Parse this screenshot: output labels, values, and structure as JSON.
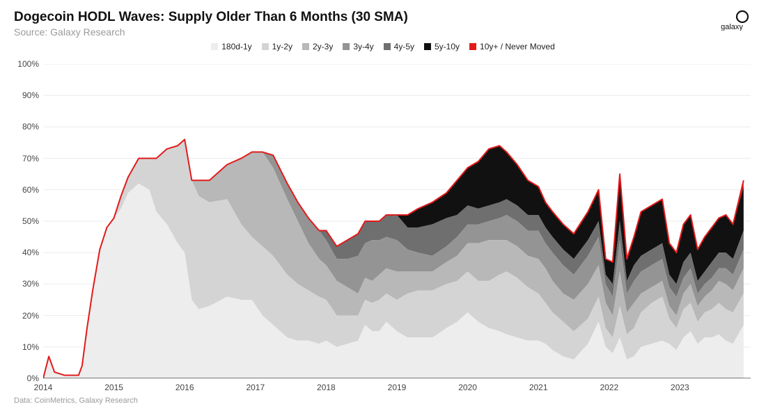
{
  "header": {
    "title": "Dogecoin HODL Waves: Supply Older Than 6 Months (30 SMA)",
    "subtitle": "Source: Galaxy Research",
    "brand": "galaxy"
  },
  "footer": {
    "text": "Data: CoinMetrics, Galaxy Research"
  },
  "chart": {
    "type": "stacked-area",
    "background_color": "#ffffff",
    "grid_color": "#e8e8e8",
    "x": {
      "start": 2014,
      "end": 2024,
      "ticks": [
        2014,
        2015,
        2016,
        2017,
        2018,
        2019,
        2020,
        2021,
        2022,
        2023
      ],
      "tick_labels": [
        "2014",
        "2015",
        "2016",
        "2017",
        "2018",
        "2019",
        "2020",
        "2021",
        "2022",
        "2023"
      ],
      "label_fontsize": 12,
      "label_color": "#444444"
    },
    "y": {
      "min": 0,
      "max": 100,
      "ticks": [
        0,
        10,
        20,
        30,
        40,
        50,
        60,
        70,
        80,
        90,
        100
      ],
      "tick_labels": [
        "0%",
        "10%",
        "20%",
        "30%",
        "40%",
        "50%",
        "60%",
        "70%",
        "80%",
        "90%",
        "100%"
      ],
      "label_fontsize": 12,
      "label_color": "#444444"
    },
    "top_line": {
      "color": "#e11b1b",
      "width": 2
    },
    "series": [
      {
        "key": "180d-1y",
        "label": "180d-1y",
        "color": "#ededed"
      },
      {
        "key": "1y-2y",
        "label": "1y-2y",
        "color": "#d4d4d4"
      },
      {
        "key": "2y-3y",
        "label": "2y-3y",
        "color": "#b8b8b8"
      },
      {
        "key": "3y-4y",
        "label": "3y-4y",
        "color": "#949494"
      },
      {
        "key": "4y-5y",
        "label": "4y-5y",
        "color": "#6f6f6f"
      },
      {
        "key": "5y-10y",
        "label": "5y-10y",
        "color": "#111111"
      },
      {
        "key": "10y+",
        "label": "10y+ / Never Moved",
        "color": "#e11b1b"
      }
    ],
    "samples": [
      {
        "t": 2014.0,
        "v": [
          0,
          0,
          0,
          0,
          0,
          0,
          0
        ]
      },
      {
        "t": 2014.08,
        "v": [
          7,
          0,
          0,
          0,
          0,
          0,
          0
        ]
      },
      {
        "t": 2014.16,
        "v": [
          2,
          0,
          0,
          0,
          0,
          0,
          0
        ]
      },
      {
        "t": 2014.3,
        "v": [
          1,
          0,
          0,
          0,
          0,
          0,
          0
        ]
      },
      {
        "t": 2014.5,
        "v": [
          1,
          0,
          0,
          0,
          0,
          0,
          0
        ]
      },
      {
        "t": 2014.55,
        "v": [
          4,
          0,
          0,
          0,
          0,
          0,
          0
        ]
      },
      {
        "t": 2014.62,
        "v": [
          16,
          0,
          0,
          0,
          0,
          0,
          0
        ]
      },
      {
        "t": 2014.7,
        "v": [
          28,
          0,
          0,
          0,
          0,
          0,
          0
        ]
      },
      {
        "t": 2014.8,
        "v": [
          41,
          0,
          0,
          0,
          0,
          0,
          0
        ]
      },
      {
        "t": 2014.9,
        "v": [
          48,
          0,
          0,
          0,
          0,
          0,
          0
        ]
      },
      {
        "t": 2015.0,
        "v": [
          51,
          0,
          0,
          0,
          0,
          0,
          0
        ]
      },
      {
        "t": 2015.1,
        "v": [
          54,
          4,
          0,
          0,
          0,
          0,
          0
        ]
      },
      {
        "t": 2015.2,
        "v": [
          59,
          5,
          0,
          0,
          0,
          0,
          0
        ]
      },
      {
        "t": 2015.35,
        "v": [
          62,
          8,
          0,
          0,
          0,
          0,
          0
        ]
      },
      {
        "t": 2015.5,
        "v": [
          60,
          10,
          0,
          0,
          0,
          0,
          0
        ]
      },
      {
        "t": 2015.6,
        "v": [
          53,
          17,
          0,
          0,
          0,
          0,
          0
        ]
      },
      {
        "t": 2015.75,
        "v": [
          49,
          24,
          0,
          0,
          0,
          0,
          0
        ]
      },
      {
        "t": 2015.9,
        "v": [
          43,
          31,
          0,
          0,
          0,
          0,
          0
        ]
      },
      {
        "t": 2016.0,
        "v": [
          40,
          36,
          0,
          0,
          0,
          0,
          0
        ]
      },
      {
        "t": 2016.1,
        "v": [
          25,
          38,
          0,
          0,
          0,
          0,
          0
        ]
      },
      {
        "t": 2016.2,
        "v": [
          22,
          36,
          5,
          0,
          0,
          0,
          0
        ]
      },
      {
        "t": 2016.35,
        "v": [
          23,
          33,
          7,
          0,
          0,
          0,
          0
        ]
      },
      {
        "t": 2016.6,
        "v": [
          26,
          31,
          11,
          0,
          0,
          0,
          0
        ]
      },
      {
        "t": 2016.8,
        "v": [
          25,
          24,
          21,
          0,
          0,
          0,
          0
        ]
      },
      {
        "t": 2016.95,
        "v": [
          25,
          20,
          27,
          0,
          0,
          0,
          0
        ]
      },
      {
        "t": 2017.1,
        "v": [
          20,
          22,
          30,
          0,
          0,
          0,
          0
        ]
      },
      {
        "t": 2017.25,
        "v": [
          17,
          22,
          28,
          4,
          0,
          0,
          0
        ]
      },
      {
        "t": 2017.45,
        "v": [
          13,
          20,
          24,
          5,
          0,
          0,
          0
        ]
      },
      {
        "t": 2017.6,
        "v": [
          12,
          18,
          20,
          6,
          0,
          0,
          0
        ]
      },
      {
        "t": 2017.75,
        "v": [
          12,
          16,
          15,
          8,
          0,
          0,
          0
        ]
      },
      {
        "t": 2017.9,
        "v": [
          11,
          15,
          12,
          9,
          0,
          0,
          0
        ]
      },
      {
        "t": 2018.0,
        "v": [
          12,
          13,
          11,
          8,
          3,
          0,
          0
        ]
      },
      {
        "t": 2018.15,
        "v": [
          10,
          10,
          11,
          7,
          4,
          0,
          0
        ]
      },
      {
        "t": 2018.3,
        "v": [
          11,
          9,
          9,
          9,
          6,
          0,
          0
        ]
      },
      {
        "t": 2018.45,
        "v": [
          12,
          8,
          7,
          12,
          7,
          0,
          0
        ]
      },
      {
        "t": 2018.55,
        "v": [
          17,
          8,
          7,
          11,
          7,
          0,
          0
        ]
      },
      {
        "t": 2018.65,
        "v": [
          15,
          9,
          7,
          13,
          6,
          0,
          0
        ]
      },
      {
        "t": 2018.75,
        "v": [
          15,
          10,
          8,
          11,
          6,
          0,
          0
        ]
      },
      {
        "t": 2018.85,
        "v": [
          18,
          9,
          8,
          10,
          7,
          0,
          0
        ]
      },
      {
        "t": 2019.0,
        "v": [
          15,
          10,
          9,
          10,
          8,
          0,
          0
        ]
      },
      {
        "t": 2019.15,
        "v": [
          13,
          14,
          7,
          7,
          7,
          4,
          0
        ]
      },
      {
        "t": 2019.3,
        "v": [
          13,
          15,
          6,
          6,
          8,
          6,
          0
        ]
      },
      {
        "t": 2019.5,
        "v": [
          13,
          15,
          6,
          5,
          10,
          7,
          0
        ]
      },
      {
        "t": 2019.7,
        "v": [
          16,
          14,
          7,
          5,
          9,
          8,
          0
        ]
      },
      {
        "t": 2019.85,
        "v": [
          18,
          13,
          8,
          6,
          7,
          11,
          0
        ]
      },
      {
        "t": 2020.0,
        "v": [
          21,
          13,
          9,
          6,
          6,
          12,
          0
        ]
      },
      {
        "t": 2020.15,
        "v": [
          18,
          13,
          12,
          6,
          5,
          15,
          0
        ]
      },
      {
        "t": 2020.3,
        "v": [
          16,
          15,
          13,
          6,
          5,
          18,
          0
        ]
      },
      {
        "t": 2020.45,
        "v": [
          15,
          18,
          11,
          7,
          5,
          18,
          0
        ]
      },
      {
        "t": 2020.55,
        "v": [
          14,
          20,
          10,
          8,
          5,
          15,
          0
        ]
      },
      {
        "t": 2020.7,
        "v": [
          13,
          19,
          10,
          8,
          5,
          13,
          0
        ]
      },
      {
        "t": 2020.85,
        "v": [
          12,
          17,
          10,
          8,
          5,
          11,
          0
        ]
      },
      {
        "t": 2021.0,
        "v": [
          12,
          15,
          11,
          9,
          5,
          9,
          0
        ]
      },
      {
        "t": 2021.1,
        "v": [
          11,
          13,
          11,
          8,
          5,
          8,
          0
        ]
      },
      {
        "t": 2021.2,
        "v": [
          9,
          12,
          10,
          9,
          5,
          8,
          0
        ]
      },
      {
        "t": 2021.35,
        "v": [
          7,
          11,
          9,
          9,
          5,
          8,
          0
        ]
      },
      {
        "t": 2021.5,
        "v": [
          6,
          9,
          10,
          8,
          5,
          8,
          0
        ]
      },
      {
        "t": 2021.7,
        "v": [
          11,
          8,
          11,
          9,
          5,
          9,
          0
        ]
      },
      {
        "t": 2021.85,
        "v": [
          18,
          8,
          10,
          9,
          5,
          10,
          0
        ]
      },
      {
        "t": 2021.95,
        "v": [
          10,
          6,
          8,
          6,
          3,
          5,
          0
        ]
      },
      {
        "t": 2022.05,
        "v": [
          8,
          5,
          7,
          6,
          4,
          7,
          0
        ]
      },
      {
        "t": 2022.15,
        "v": [
          13,
          10,
          11,
          10,
          6,
          15,
          0
        ]
      },
      {
        "t": 2022.25,
        "v": [
          6,
          8,
          7,
          6,
          4,
          7,
          0
        ]
      },
      {
        "t": 2022.35,
        "v": [
          7,
          9,
          8,
          7,
          5,
          9,
          0
        ]
      },
      {
        "t": 2022.45,
        "v": [
          10,
          11,
          6,
          7,
          5,
          14,
          0
        ]
      },
      {
        "t": 2022.6,
        "v": [
          11,
          13,
          5,
          7,
          5,
          14,
          0
        ]
      },
      {
        "t": 2022.75,
        "v": [
          12,
          14,
          5,
          7,
          5,
          14,
          0
        ]
      },
      {
        "t": 2022.85,
        "v": [
          11,
          8,
          4,
          6,
          4,
          10,
          0
        ]
      },
      {
        "t": 2022.95,
        "v": [
          9,
          7,
          4,
          6,
          4,
          10,
          0
        ]
      },
      {
        "t": 2023.05,
        "v": [
          13,
          9,
          5,
          5,
          5,
          12,
          0
        ]
      },
      {
        "t": 2023.15,
        "v": [
          15,
          9,
          6,
          5,
          5,
          12,
          0
        ]
      },
      {
        "t": 2023.25,
        "v": [
          11,
          7,
          5,
          4,
          4,
          10,
          0
        ]
      },
      {
        "t": 2023.35,
        "v": [
          13,
          8,
          5,
          4,
          4,
          11,
          0
        ]
      },
      {
        "t": 2023.45,
        "v": [
          13,
          9,
          6,
          4,
          5,
          11,
          0
        ]
      },
      {
        "t": 2023.55,
        "v": [
          14,
          10,
          7,
          4,
          5,
          11,
          0
        ]
      },
      {
        "t": 2023.65,
        "v": [
          12,
          10,
          8,
          5,
          5,
          12,
          0
        ]
      },
      {
        "t": 2023.75,
        "v": [
          11,
          10,
          7,
          5,
          5,
          11,
          0
        ]
      },
      {
        "t": 2023.9,
        "v": [
          17,
          10,
          8,
          6,
          6,
          14,
          2
        ]
      }
    ]
  }
}
